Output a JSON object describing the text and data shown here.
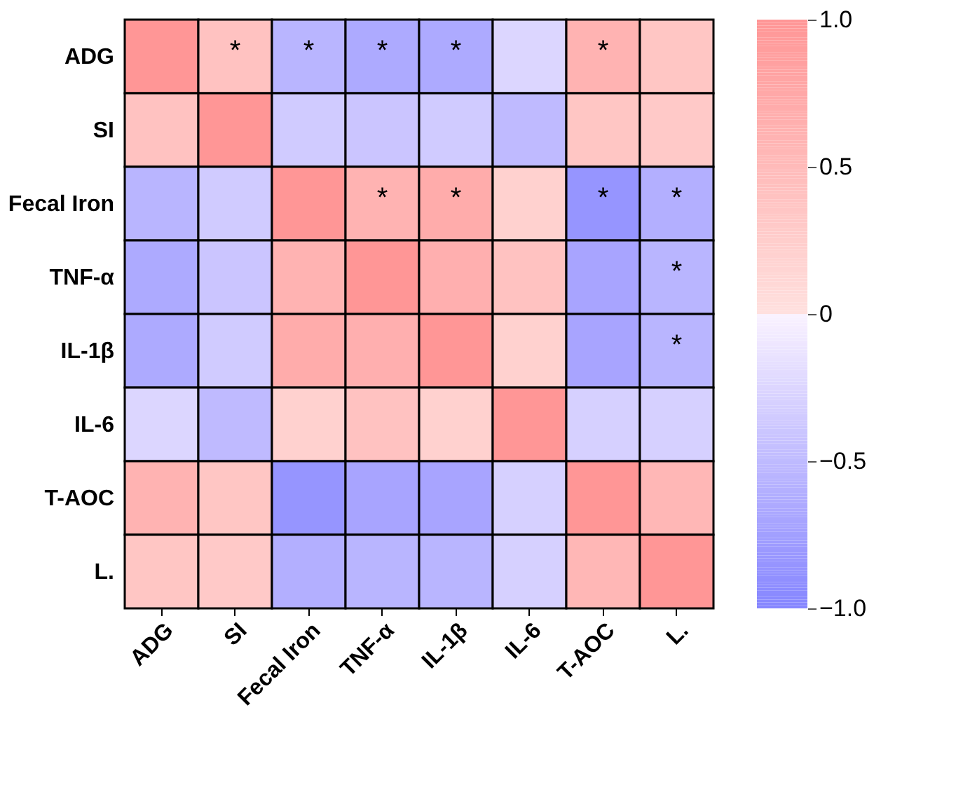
{
  "chart_data": {
    "type": "heatmap",
    "categories": [
      "ADG",
      "SI",
      "Fecal Iron",
      "TNF-α",
      "IL-1β",
      "IL-6",
      "T-AOC",
      "L."
    ],
    "y_categories": [
      "ADG",
      "SI",
      "Fecal Iron",
      "TNF-α",
      "IL-1β",
      "IL-6",
      "T-AOC",
      "L."
    ],
    "cells": [
      [
        1.0,
        0.4,
        -0.55,
        -0.65,
        -0.65,
        -0.25,
        0.6,
        0.35
      ],
      [
        0.4,
        1.0,
        -0.35,
        -0.4,
        -0.35,
        -0.5,
        0.35,
        0.3
      ],
      [
        -0.55,
        -0.35,
        1.0,
        0.6,
        0.7,
        0.2,
        -0.85,
        -0.6
      ],
      [
        -0.65,
        -0.4,
        0.6,
        1.0,
        0.65,
        0.4,
        -0.7,
        -0.55
      ],
      [
        -0.65,
        -0.35,
        0.7,
        0.65,
        1.0,
        0.2,
        -0.7,
        -0.55
      ],
      [
        -0.25,
        -0.5,
        0.2,
        0.4,
        0.2,
        1.0,
        -0.3,
        -0.3
      ],
      [
        0.6,
        0.35,
        -0.85,
        -0.7,
        -0.7,
        -0.3,
        1.0,
        0.55
      ],
      [
        0.35,
        0.3,
        -0.6,
        -0.55,
        -0.55,
        -0.3,
        0.55,
        1.0
      ]
    ],
    "cell_labels": [
      [
        null,
        "*",
        "*",
        "*",
        "*",
        null,
        "*",
        null
      ],
      [
        null,
        null,
        null,
        null,
        null,
        null,
        null,
        null
      ],
      [
        null,
        null,
        null,
        "*",
        "*",
        null,
        "*",
        "*"
      ],
      [
        null,
        null,
        null,
        null,
        null,
        null,
        null,
        "*"
      ],
      [
        null,
        null,
        null,
        null,
        null,
        null,
        null,
        "*"
      ],
      [
        null,
        null,
        null,
        null,
        null,
        null,
        null,
        null
      ],
      [
        null,
        null,
        null,
        null,
        null,
        null,
        null,
        null
      ],
      [
        null,
        null,
        null,
        null,
        null,
        null,
        null,
        null
      ]
    ],
    "clim": [
      -1.0,
      1.0
    ],
    "cticks": [
      {
        "value": 1.0,
        "label": "1.0"
      },
      0.5,
      0,
      {
        "value": -0.5,
        "label": "−0.5"
      },
      {
        "value": -1.0,
        "label": "−1.0"
      }
    ]
  }
}
